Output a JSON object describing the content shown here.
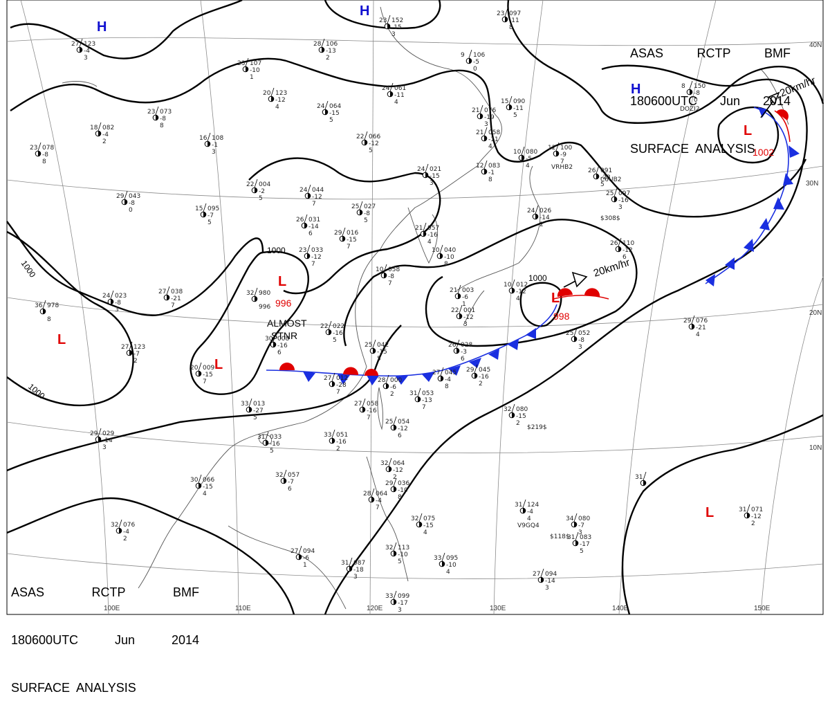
{
  "header": {
    "agency_line": [
      "ASAS",
      "RCTP",
      "BMF"
    ],
    "time_line": [
      "180600UTC",
      "Jun",
      "2014"
    ],
    "product": "SURFACE  ANALYSIS"
  },
  "footer": {
    "agency_line": [
      "ASAS",
      "RCTP",
      "BMF"
    ],
    "time_line": [
      "180600UTC",
      "Jun",
      "2014"
    ],
    "product": "SURFACE  ANALYSIS"
  },
  "colors": {
    "isobar": "#000000",
    "low": "#e00000",
    "high": "#1010d0",
    "cold_front": "#1a2fe0",
    "warm_front": "#e00000",
    "coast": "#555555",
    "grid": "#888888"
  },
  "longitude_labels": [
    "100E",
    "110E",
    "120E",
    "130E",
    "140E",
    "150E"
  ],
  "latitude_labels": [
    "40N",
    "30N",
    "20N",
    "10N"
  ],
  "pressure_centers": [
    {
      "type": "H",
      "value": ""
    },
    {
      "type": "H",
      "value": ""
    },
    {
      "type": "H",
      "value": ""
    },
    {
      "type": "L",
      "value": "1002"
    },
    {
      "type": "L",
      "value": "998"
    },
    {
      "type": "L",
      "value": "996"
    },
    {
      "type": "L",
      "value": ""
    },
    {
      "type": "L",
      "value": ""
    },
    {
      "type": "L",
      "value": ""
    }
  ],
  "isobar_labels": [
    "1000",
    "1000",
    "1000",
    "1000"
  ],
  "motion_labels": [
    "20km/hr",
    "20km/hr"
  ],
  "annotation": {
    "line1": "ALMOST",
    "line2": "STNR"
  },
  "stations": [
    {
      "t": "27",
      "p": "123",
      "d": "-4",
      "w": "3"
    },
    {
      "t": "28",
      "p": "106",
      "d": "-13",
      "w": "2"
    },
    {
      "t": "23",
      "p": "152",
      "d": "-15",
      "w": "3"
    },
    {
      "t": "23",
      "p": "097",
      "d": "-11",
      "w": "8"
    },
    {
      "t": "9",
      "p": "106",
      "d": "-5",
      "w": "0"
    },
    {
      "t": "23",
      "p": "107",
      "d": "-10",
      "w": "1"
    },
    {
      "t": "20",
      "p": "123",
      "d": "-12",
      "w": "4"
    },
    {
      "t": "24",
      "p": "061",
      "d": "-11",
      "w": "4"
    },
    {
      "t": "24",
      "p": "064",
      "d": "-15",
      "w": "5"
    },
    {
      "t": "21",
      "p": "076",
      "d": "-19",
      "w": "3"
    },
    {
      "t": "15",
      "p": "090",
      "d": "-11",
      "w": "5"
    },
    {
      "t": "8",
      "p": "150",
      "d": "-8",
      "w": "0"
    },
    {
      "t": "23",
      "p": "073",
      "d": "-8",
      "w": "8"
    },
    {
      "t": "18",
      "p": "082",
      "d": "-4",
      "w": "2"
    },
    {
      "t": "23",
      "p": "078",
      "d": "-8",
      "w": "8"
    },
    {
      "t": "16",
      "p": "108",
      "d": "-1",
      "w": "3"
    },
    {
      "t": "22",
      "p": "066",
      "d": "-12",
      "w": "5"
    },
    {
      "t": "21",
      "p": "058",
      "d": "-11",
      "w": "4"
    },
    {
      "t": "12",
      "p": "100",
      "d": "-9",
      "w": "7"
    },
    {
      "t": "12",
      "p": "083",
      "d": "-1",
      "w": "8"
    },
    {
      "t": "10",
      "p": "080",
      "d": "-5",
      "w": "4"
    },
    {
      "t": "22",
      "p": "004",
      "d": "-2",
      "w": "5"
    },
    {
      "t": "24",
      "p": "044",
      "d": "-12",
      "w": "7"
    },
    {
      "t": "24",
      "p": "021",
      "d": "-15",
      "w": "3"
    },
    {
      "t": "29",
      "p": "043",
      "d": "-8",
      "w": "0"
    },
    {
      "t": "15",
      "p": "095",
      "d": "-7",
      "w": "5"
    },
    {
      "t": "26",
      "p": "031",
      "d": "-14",
      "w": "6"
    },
    {
      "t": "25",
      "p": "027",
      "d": "-8",
      "w": "5"
    },
    {
      "t": "24",
      "p": "026",
      "d": "-14",
      "w": "2"
    },
    {
      "t": "26",
      "p": "091",
      "d": "-23",
      "w": "5"
    },
    {
      "t": "25",
      "p": "097",
      "d": "-16",
      "w": "3"
    },
    {
      "t": "29",
      "p": "016",
      "d": "-15",
      "w": "7"
    },
    {
      "t": "21",
      "p": "057",
      "d": "-16",
      "w": "4"
    },
    {
      "t": "10",
      "p": "040",
      "d": "-10",
      "w": "8"
    },
    {
      "t": "23",
      "p": "033",
      "d": "-12",
      "w": "7"
    },
    {
      "t": "10",
      "p": "058",
      "d": "-8",
      "w": "7"
    },
    {
      "t": "26",
      "p": "110",
      "d": "-12",
      "w": "6"
    },
    {
      "t": "32",
      "p": "980",
      "d": "",
      "w": "996"
    },
    {
      "t": "27",
      "p": "038",
      "d": "-21",
      "w": "7"
    },
    {
      "t": "24",
      "p": "023",
      "d": "-8",
      "w": "3"
    },
    {
      "t": "36",
      "p": "978",
      "d": "",
      "w": "8"
    },
    {
      "t": "21",
      "p": "003",
      "d": "-6",
      "w": "1"
    },
    {
      "t": "22",
      "p": "001",
      "d": "-12",
      "w": "3"
    },
    {
      "t": "10",
      "p": "012",
      "d": "-12",
      "w": "4"
    },
    {
      "t": "22",
      "p": "022",
      "d": "-16",
      "w": "5"
    },
    {
      "t": "27",
      "p": "123",
      "d": "-7",
      "w": "2"
    },
    {
      "t": "29",
      "p": "076",
      "d": "-21",
      "w": "4"
    },
    {
      "t": "25",
      "p": "052",
      "d": "-8",
      "w": "3"
    },
    {
      "t": "30",
      "p": "008",
      "d": "-16",
      "w": "6"
    },
    {
      "t": "25",
      "p": "042",
      "d": "-15",
      "w": "5"
    },
    {
      "t": "26",
      "p": "028",
      "d": "-3",
      "w": "6"
    },
    {
      "t": "20",
      "p": "009",
      "d": "-15",
      "w": "7"
    },
    {
      "t": "27",
      "p": "012",
      "d": "-28",
      "w": "7"
    },
    {
      "t": "28",
      "p": "000",
      "d": "-6",
      "w": "2"
    },
    {
      "t": "27",
      "p": "045",
      "d": "-4",
      "w": "8"
    },
    {
      "t": "29",
      "p": "045",
      "d": "-16",
      "w": "2"
    },
    {
      "t": "33",
      "p": "013",
      "d": "-27",
      "w": "5"
    },
    {
      "t": "31",
      "p": "053",
      "d": "-13",
      "w": "7"
    },
    {
      "t": "27",
      "p": "058",
      "d": "-16",
      "w": "7"
    },
    {
      "t": "32",
      "p": "080",
      "d": "-15",
      "w": "2"
    },
    {
      "t": "25",
      "p": "054",
      "d": "-12",
      "w": "6"
    },
    {
      "t": "33",
      "p": "051",
      "d": "-16",
      "w": "2"
    },
    {
      "t": "31",
      "p": "033",
      "d": "-16",
      "w": "5"
    },
    {
      "t": "29",
      "p": "029",
      "d": "-14",
      "w": "3"
    },
    {
      "t": "32",
      "p": "057",
      "d": "-7",
      "w": "6"
    },
    {
      "t": "30",
      "p": "066",
      "d": "-15",
      "w": "4"
    },
    {
      "t": "32",
      "p": "064",
      "d": "-12",
      "w": "2"
    },
    {
      "t": "29",
      "p": "036",
      "d": "-10",
      "w": "8"
    },
    {
      "t": "28",
      "p": "064",
      "d": "-4",
      "w": "7"
    },
    {
      "t": "32",
      "p": "075",
      "d": "-15",
      "w": "4"
    },
    {
      "t": "31",
      "p": "124",
      "d": "-4",
      "w": "4"
    },
    {
      "t": "34",
      "p": "080",
      "d": "-7",
      "w": "3"
    },
    {
      "t": "31",
      "p": "071",
      "d": "-12",
      "w": "2"
    },
    {
      "t": "31",
      "p": "083",
      "d": "-17",
      "w": "5"
    },
    {
      "t": "32",
      "p": "076",
      "d": "-4",
      "w": "2"
    },
    {
      "t": "27",
      "p": "094",
      "d": "-6",
      "w": "1"
    },
    {
      "t": "31",
      "p": "087",
      "d": "-18",
      "w": "3"
    },
    {
      "t": "32",
      "p": "113",
      "d": "-10",
      "w": "5"
    },
    {
      "t": "33",
      "p": "095",
      "d": "-10",
      "w": "4"
    },
    {
      "t": "27",
      "p": "094",
      "d": "-14",
      "w": "3"
    },
    {
      "t": "33",
      "p": "099",
      "d": "-17",
      "w": "3"
    },
    {
      "t": "31",
      "p": "",
      "d": "",
      "w": ""
    }
  ],
  "ship_ids": [
    "$308$",
    "$219$",
    "$118$",
    "C6UB2",
    "VRHB2",
    "DOZI2",
    "V9GQ4"
  ]
}
